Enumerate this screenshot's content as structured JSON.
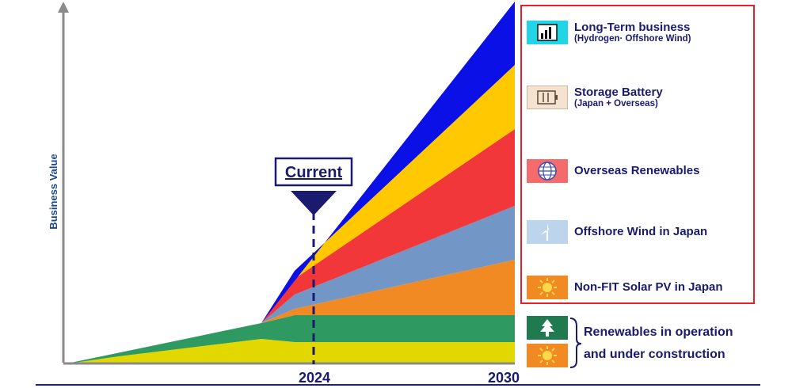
{
  "chart_data": {
    "type": "area",
    "stacked": true,
    "ylabel": "Business Value",
    "xlabel": "",
    "x_ticks": [
      "2024",
      "2030"
    ],
    "annotation": "Current",
    "annotation_at": "2024",
    "grid": false,
    "legend_placement": "right",
    "series": [
      {
        "name": "Renewables in operation and under construction",
        "color": "#e2d800"
      },
      {
        "name": "Renewables in operation and under construction",
        "color": "#2e9a62"
      },
      {
        "name": "Non-FIT Solar PV in Japan",
        "color": "#f28a24"
      },
      {
        "name": "Offshore Wind in Japan",
        "color": "#7296c6"
      },
      {
        "name": "Overseas Renewables",
        "color": "#f2373b"
      },
      {
        "name": "Storage Battery",
        "color": "#ffc800"
      },
      {
        "name": "Long-Term business",
        "color": "#0b10e6"
      }
    ]
  },
  "legend": {
    "items": [
      {
        "id": "longterm",
        "label": "Long-Term business",
        "sub": "(Hydrogen· Offshore Wind)",
        "icon": "chart-icon",
        "color": "#21d4e6"
      },
      {
        "id": "storage",
        "label": "Storage Battery",
        "sub": "(Japan + Overseas)",
        "icon": "battery-icon",
        "color": "#f5e3cf"
      },
      {
        "id": "overseas",
        "label": "Overseas Renewables",
        "sub": "",
        "icon": "globe-icon",
        "color": "#f56a6a"
      },
      {
        "id": "offshore",
        "label": "Offshore Wind in Japan",
        "sub": "",
        "icon": "wind-turbine-icon",
        "color": "#bcd4ec"
      },
      {
        "id": "solar",
        "label": "Non-FIT Solar PV in Japan",
        "sub": "",
        "icon": "sun-icon",
        "color": "#f28a24"
      }
    ],
    "bottom": {
      "line1": "Renewables in operation",
      "line2": "and under construction",
      "icons": [
        {
          "icon": "tree-icon",
          "color": "#1f7a50"
        },
        {
          "icon": "sun-icon",
          "color": "#f28a24"
        }
      ]
    },
    "border_color": "#e8202a"
  }
}
